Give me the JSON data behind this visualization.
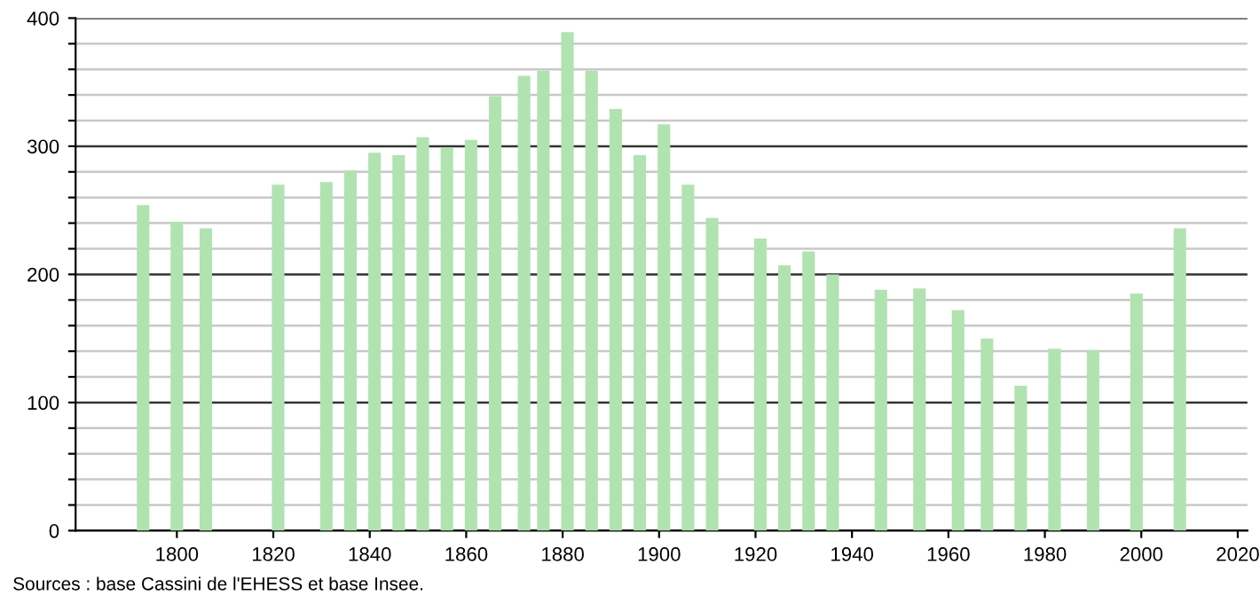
{
  "chart_data": {
    "type": "bar",
    "x": [
      1793,
      1800,
      1806,
      1821,
      1831,
      1836,
      1841,
      1846,
      1851,
      1856,
      1861,
      1866,
      1872,
      1876,
      1881,
      1886,
      1891,
      1896,
      1901,
      1906,
      1911,
      1921,
      1926,
      1931,
      1936,
      1946,
      1954,
      1962,
      1968,
      1975,
      1982,
      1990,
      1999,
      2008
    ],
    "values": [
      254,
      241,
      236,
      270,
      272,
      281,
      295,
      293,
      307,
      299,
      305,
      339,
      355,
      359,
      389,
      359,
      329,
      293,
      317,
      270,
      244,
      228,
      207,
      218,
      200,
      188,
      189,
      172,
      150,
      113,
      142,
      141,
      185,
      236
    ],
    "color": "#b0e3b0",
    "xlim": [
      1779,
      2022
    ],
    "xticks": [
      1800,
      1820,
      1840,
      1860,
      1880,
      1900,
      1920,
      1940,
      1960,
      1980,
      2000,
      2020
    ],
    "ylim": [
      0,
      400
    ],
    "yticks": [
      0,
      {
        "value": 20,
        "label": null
      },
      {
        "value": 40,
        "label": null
      },
      {
        "value": 60,
        "label": null
      },
      {
        "value": 80,
        "label": null
      },
      100,
      {
        "value": 120,
        "label": null
      },
      {
        "value": 140,
        "label": null
      },
      {
        "value": 160,
        "label": null
      },
      {
        "value": 180,
        "label": null
      },
      200,
      {
        "value": 220,
        "label": null
      },
      {
        "value": 240,
        "label": null
      },
      {
        "value": 260,
        "label": null
      },
      {
        "value": 280,
        "label": null
      },
      300,
      {
        "value": 320,
        "label": null
      },
      {
        "value": 340,
        "label": null
      },
      {
        "value": 360,
        "label": null
      },
      {
        "value": 380,
        "label": null
      },
      400
    ],
    "grid": "y",
    "annotations": [
      "Sources : base Cassini de l'EHESS et base Insee."
    ]
  }
}
